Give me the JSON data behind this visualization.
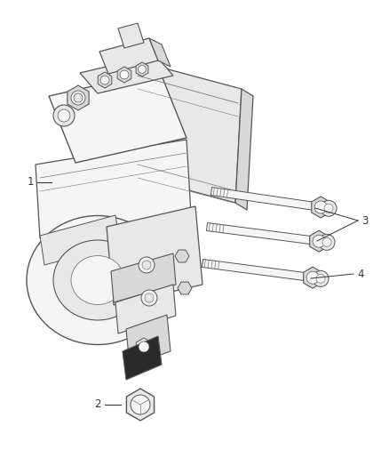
{
  "background_color": "#ffffff",
  "figure_width": 4.38,
  "figure_height": 5.33,
  "dpi": 100,
  "line_color": "#555555",
  "text_color": "#333333",
  "label_fontsize": 8.5,
  "face_light": "#f5f5f5",
  "face_mid": "#e8e8e8",
  "face_dark": "#d8d8d8",
  "edge_color": "#555555",
  "detail_color": "#777777"
}
